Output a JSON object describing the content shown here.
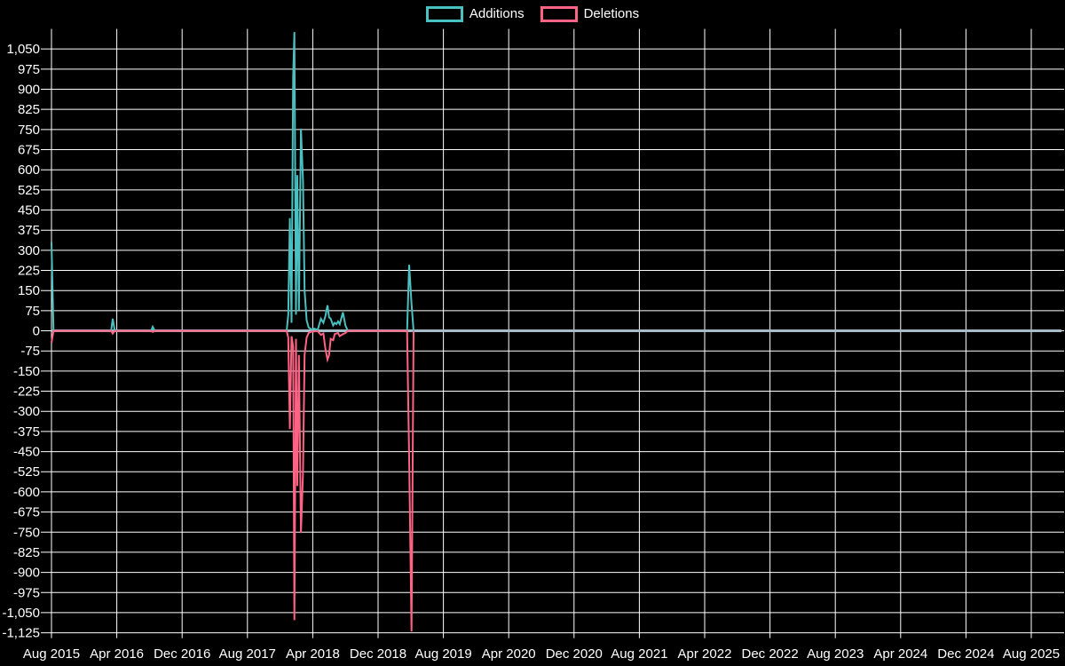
{
  "page": {
    "background_color": "#000000",
    "text_color": "#ffffff",
    "grid_color": "#ffffff",
    "zero_line_color": "#a7bcc9"
  },
  "legend": {
    "items": [
      {
        "id": "additions",
        "label": "Additions",
        "color": "#4bc0c0"
      },
      {
        "id": "deletions",
        "label": "Deletions",
        "color": "#ff6384"
      }
    ]
  },
  "chart_data": {
    "type": "line",
    "title": "",
    "xlabel": "",
    "ylabel": "",
    "grid": true,
    "legend_position": "top-center",
    "x_axis": {
      "start": "Aug 2015",
      "end": "Aug 2025",
      "months_per_tick": 8,
      "tick_labels": [
        "Aug 2015",
        "Apr 2016",
        "Dec 2016",
        "Aug 2017",
        "Apr 2018",
        "Dec 2018",
        "Aug 2019",
        "Apr 2020",
        "Dec 2020",
        "Aug 2021",
        "Apr 2022",
        "Dec 2022",
        "Aug 2023",
        "Apr 2024",
        "Dec 2024",
        "Aug 2025"
      ]
    },
    "y_axis": {
      "min": -1125,
      "max": 1125,
      "tick_step": 75,
      "top_tick_value": 1050,
      "tick_labels": [
        "1,050",
        "975",
        "900",
        "825",
        "750",
        "675",
        "600",
        "525",
        "450",
        "375",
        "300",
        "225",
        "150",
        "75",
        "0",
        "-75",
        "-150",
        "-225",
        "-300",
        "-375",
        "-450",
        "-525",
        "-600",
        "-675",
        "-750",
        "-825",
        "-900",
        "-975",
        "-1,050",
        "-1,125"
      ]
    },
    "series_names": [
      "Additions",
      "Deletions"
    ],
    "series_colors": [
      "#4bc0c0",
      "#ff6384"
    ],
    "points_format": [
      "months_since_aug_2015",
      "additions",
      "deletions"
    ],
    "points": [
      [
        0.0,
        330,
        -45
      ],
      [
        0.25,
        0,
        0
      ],
      [
        7.3,
        0,
        0
      ],
      [
        7.5,
        45,
        -10
      ],
      [
        7.75,
        0,
        0
      ],
      [
        12.2,
        0,
        0
      ],
      [
        12.4,
        15,
        -4
      ],
      [
        12.65,
        0,
        0
      ],
      [
        28.8,
        0,
        0
      ],
      [
        29.0,
        60,
        -25
      ],
      [
        29.2,
        420,
        -366
      ],
      [
        29.4,
        30,
        -20
      ],
      [
        29.6,
        945,
        -60
      ],
      [
        29.75,
        1113,
        -1078
      ],
      [
        29.95,
        60,
        -30
      ],
      [
        30.1,
        580,
        -578
      ],
      [
        30.3,
        75,
        -90
      ],
      [
        30.55,
        753,
        -753
      ],
      [
        30.8,
        560,
        -530
      ],
      [
        31.0,
        150,
        -90
      ],
      [
        31.25,
        40,
        -25
      ],
      [
        31.5,
        12,
        -8
      ],
      [
        31.85,
        5,
        -3
      ],
      [
        32.2,
        8,
        -2
      ],
      [
        32.6,
        3,
        -1
      ],
      [
        33.0,
        45,
        -15
      ],
      [
        33.3,
        30,
        -10
      ],
      [
        33.55,
        55,
        -68
      ],
      [
        33.8,
        95,
        -107
      ],
      [
        34.0,
        50,
        -90
      ],
      [
        34.2,
        45,
        -30
      ],
      [
        34.5,
        20,
        -35
      ],
      [
        34.7,
        30,
        -12
      ],
      [
        34.9,
        25,
        -10
      ],
      [
        35.1,
        35,
        -8
      ],
      [
        35.3,
        25,
        -20
      ],
      [
        35.7,
        69,
        -12
      ],
      [
        36.0,
        20,
        -8
      ],
      [
        36.3,
        0,
        0
      ],
      [
        43.55,
        0,
        0
      ],
      [
        43.8,
        246,
        -472
      ],
      [
        44.1,
        100,
        -1120
      ],
      [
        44.35,
        0,
        0
      ],
      [
        120,
        0,
        0
      ]
    ]
  }
}
